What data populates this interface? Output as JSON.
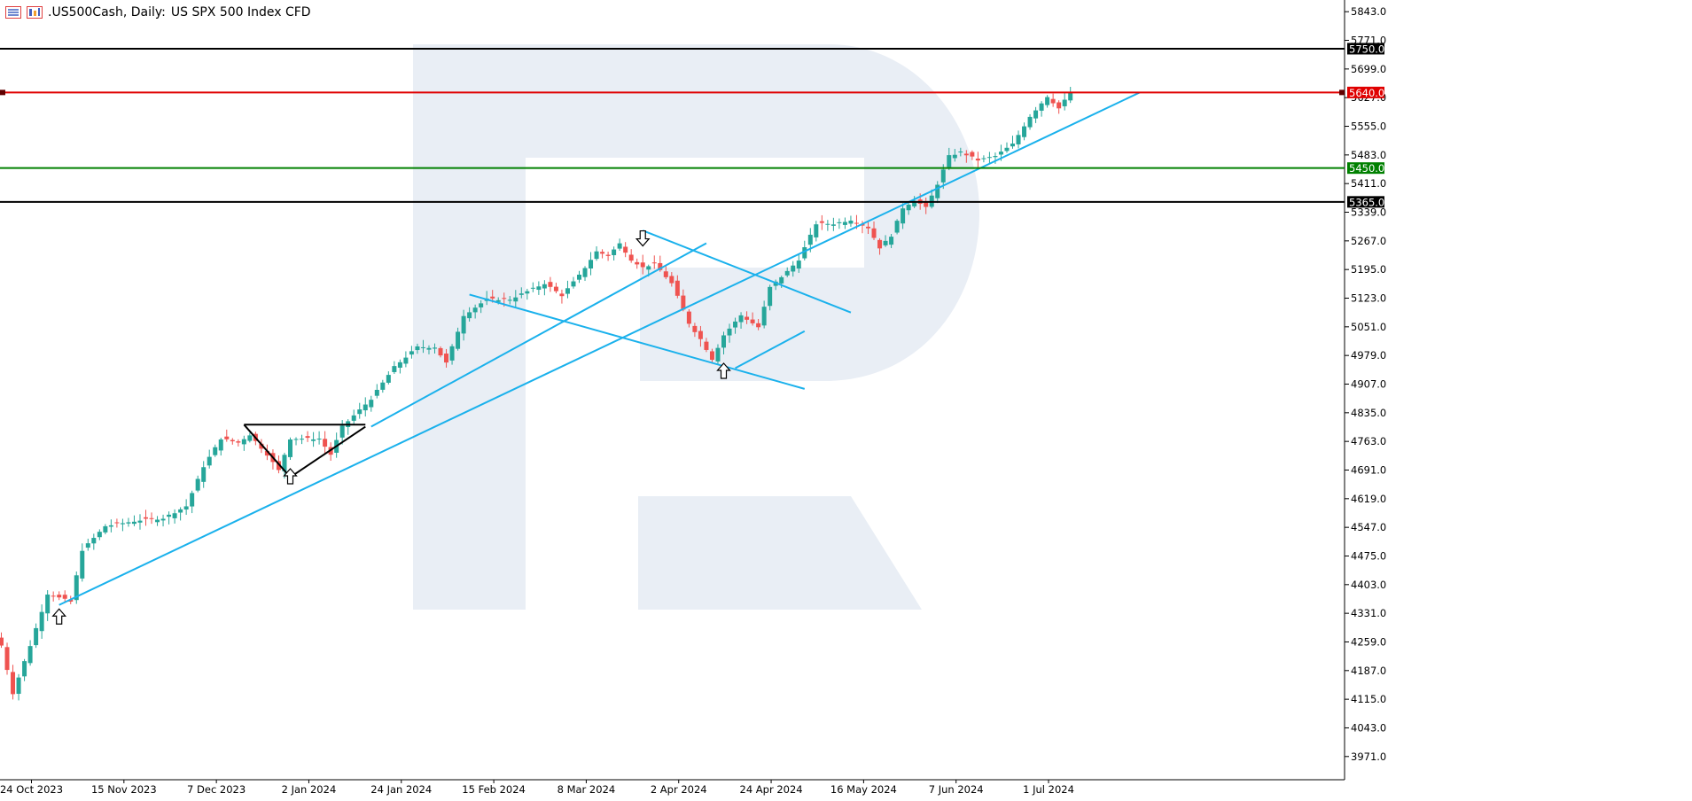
{
  "header": {
    "symbol": ".US500Cash, Daily:",
    "description": "US SPX 500 Index CFD"
  },
  "colors": {
    "bull": "#26a69a",
    "bear": "#ef5350",
    "trend": "#1ab1ec",
    "resistance": "#e00000",
    "support": "#008000",
    "level": "#000000",
    "watermark": "#e9eef5"
  },
  "chart_data": {
    "type": "candlestick",
    "timeframe": "Daily",
    "ylim": [
      3935,
      5879
    ],
    "y_ticks": [
      5843.0,
      5771.0,
      5699.0,
      5627.0,
      5555.0,
      5483.0,
      5411.0,
      5339.0,
      5267.0,
      5195.0,
      5123.0,
      5051.0,
      4979.0,
      4907.0,
      4835.0,
      4763.0,
      4691.0,
      4619.0,
      4547.0,
      4475.0,
      4403.0,
      4331.0,
      4259.0,
      4187.0,
      4115.0,
      4043.0,
      3971.0
    ],
    "x_ticks": [
      {
        "label": "24 Oct 2023",
        "i": 0
      },
      {
        "label": "15 Nov 2023",
        "i": 16
      },
      {
        "label": "7 Dec 2023",
        "i": 32
      },
      {
        "label": "2 Jan 2024",
        "i": 48
      },
      {
        "label": "24 Jan 2024",
        "i": 64
      },
      {
        "label": "15 Feb 2024",
        "i": 80
      },
      {
        "label": "8 Mar 2024",
        "i": 96
      },
      {
        "label": "2 Apr 2024",
        "i": 112
      },
      {
        "label": "24 Apr 2024",
        "i": 128
      },
      {
        "label": "16 May 2024",
        "i": 144
      },
      {
        "label": "7 Jun 2024",
        "i": 160
      },
      {
        "label": "1 Jul 2024",
        "i": 176
      }
    ],
    "levels": [
      {
        "price": 5750.0,
        "label": "5750.0",
        "kind": "level"
      },
      {
        "price": 5640.0,
        "label": "5640.0",
        "kind": "resistance"
      },
      {
        "price": 5450.0,
        "label": "5450.0",
        "kind": "support"
      },
      {
        "price": 5365.0,
        "label": "5365.0",
        "kind": "level"
      }
    ],
    "anchors": [
      {
        "i": 0,
        "close": 4250
      },
      {
        "i": 2,
        "close": 4130
      },
      {
        "i": 5,
        "close": 4250
      },
      {
        "i": 8,
        "close": 4380
      },
      {
        "i": 12,
        "close": 4360
      },
      {
        "i": 14,
        "close": 4490
      },
      {
        "i": 18,
        "close": 4550
      },
      {
        "i": 24,
        "close": 4565
      },
      {
        "i": 28,
        "close": 4570
      },
      {
        "i": 32,
        "close": 4600
      },
      {
        "i": 35,
        "close": 4700
      },
      {
        "i": 38,
        "close": 4770
      },
      {
        "i": 41,
        "close": 4760
      },
      {
        "i": 43,
        "close": 4780
      },
      {
        "i": 46,
        "close": 4730
      },
      {
        "i": 48,
        "close": 4690
      },
      {
        "i": 50,
        "close": 4770
      },
      {
        "i": 55,
        "close": 4770
      },
      {
        "i": 57,
        "close": 4730
      },
      {
        "i": 59,
        "close": 4800
      },
      {
        "i": 64,
        "close": 4870
      },
      {
        "i": 68,
        "close": 4950
      },
      {
        "i": 72,
        "close": 5000
      },
      {
        "i": 75,
        "close": 5000
      },
      {
        "i": 77,
        "close": 4960
      },
      {
        "i": 80,
        "close": 5080
      },
      {
        "i": 84,
        "close": 5120
      },
      {
        "i": 88,
        "close": 5120
      },
      {
        "i": 91,
        "close": 5140
      },
      {
        "i": 94,
        "close": 5160
      },
      {
        "i": 97,
        "close": 5130
      },
      {
        "i": 100,
        "close": 5180
      },
      {
        "i": 103,
        "close": 5240
      },
      {
        "i": 105,
        "close": 5230
      },
      {
        "i": 107,
        "close": 5260
      },
      {
        "i": 109,
        "close": 5220
      },
      {
        "i": 111,
        "close": 5200
      },
      {
        "i": 113,
        "close": 5210
      },
      {
        "i": 116,
        "close": 5160
      },
      {
        "i": 119,
        "close": 5060
      },
      {
        "i": 121,
        "close": 5020
      },
      {
        "i": 123,
        "close": 4970
      },
      {
        "i": 125,
        "close": 5030
      },
      {
        "i": 128,
        "close": 5080
      },
      {
        "i": 131,
        "close": 5050
      },
      {
        "i": 133,
        "close": 5150
      },
      {
        "i": 136,
        "close": 5190
      },
      {
        "i": 138,
        "close": 5220
      },
      {
        "i": 141,
        "close": 5310
      },
      {
        "i": 144,
        "close": 5310
      },
      {
        "i": 147,
        "close": 5320
      },
      {
        "i": 150,
        "close": 5300
      },
      {
        "i": 152,
        "close": 5250
      },
      {
        "i": 154,
        "close": 5280
      },
      {
        "i": 156,
        "close": 5350
      },
      {
        "i": 158,
        "close": 5370
      },
      {
        "i": 160,
        "close": 5350
      },
      {
        "i": 162,
        "close": 5410
      },
      {
        "i": 164,
        "close": 5480
      },
      {
        "i": 166,
        "close": 5490
      },
      {
        "i": 169,
        "close": 5470
      },
      {
        "i": 172,
        "close": 5480
      },
      {
        "i": 175,
        "close": 5510
      },
      {
        "i": 178,
        "close": 5580
      },
      {
        "i": 181,
        "close": 5630
      },
      {
        "i": 183,
        "close": 5600
      },
      {
        "i": 185,
        "close": 5640
      }
    ],
    "trendlines": [
      {
        "name": "main-uptrend",
        "from": [
          10,
          4352
        ],
        "to": [
          197,
          5640
        ],
        "color": "trend"
      },
      {
        "name": "channel-upper",
        "from": [
          111,
          5293
        ],
        "to": [
          147,
          5087
        ],
        "color": "trend"
      },
      {
        "name": "channel-lower",
        "from": [
          81,
          5132
        ],
        "to": [
          139,
          4895
        ],
        "color": "trend"
      },
      {
        "name": "channel-inner",
        "from": [
          64,
          4800
        ],
        "to": [
          122,
          5261
        ],
        "color": "trend"
      },
      {
        "name": "recovery-trend",
        "from": [
          127,
          4947
        ],
        "to": [
          139,
          5040
        ],
        "color": "trend"
      },
      {
        "name": "triangle-top",
        "from": [
          42,
          4805
        ],
        "to": [
          63,
          4805
        ],
        "color": "level"
      },
      {
        "name": "triangle-left",
        "from": [
          42,
          4805
        ],
        "to": [
          50,
          4673
        ],
        "color": "level"
      },
      {
        "name": "triangle-base",
        "from": [
          50,
          4673
        ],
        "to": [
          63,
          4800
        ],
        "color": "level"
      }
    ],
    "arrows": [
      {
        "i": 10,
        "direction": "up"
      },
      {
        "i": 50,
        "direction": "up"
      },
      {
        "i": 111,
        "direction": "down"
      },
      {
        "i": 125,
        "direction": "up"
      }
    ]
  }
}
